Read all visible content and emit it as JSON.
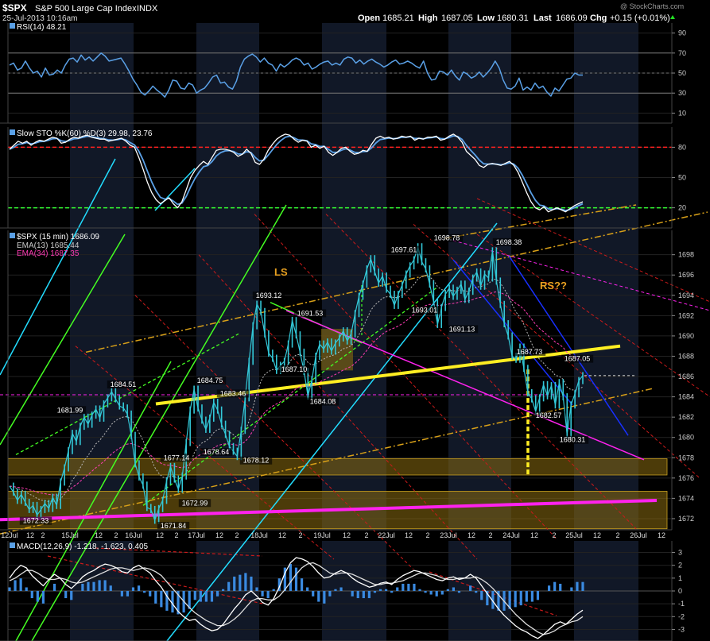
{
  "header": {
    "symbol": "$SPX",
    "name": "S&P 500 Large Cap Index",
    "exchange": "INDX",
    "datetime": "25-Jul-2013 10:16am",
    "open_label": "Open",
    "open": "1685.21",
    "high_label": "High",
    "high": "1687.05",
    "low_label": "Low",
    "low": "1680.31",
    "last_label": "Last",
    "last": "1686.09",
    "chg_label": "Chg",
    "chg": "+0.15 (+0.01%)",
    "watermark": "@ StockCharts.com"
  },
  "colors": {
    "background": "#000000",
    "price": "#33c8d8",
    "ema13": "#b8b8b8",
    "ema34": "#ff3cb4",
    "rsi_line": "#5aa0e6",
    "sto_k": "#ffffff",
    "sto_d": "#5aa0e6",
    "yellow": "#ffee22",
    "magenta": "#ff22ee",
    "orange": "#d8a018",
    "green": "#44ff22",
    "cyan": "#22ddff",
    "blue": "#1830ff",
    "red": "#cc1a1a",
    "annotation": "#e8a020",
    "zone": "#8a6c10"
  },
  "panels": {
    "rsi": {
      "label": "RSI(14) 48.21",
      "ticks": [
        "90",
        "70",
        "50",
        "30",
        "10"
      ],
      "tick_values": [
        90,
        70,
        50,
        30,
        10
      ],
      "ylim": [
        0,
        100
      ]
    },
    "sto": {
      "label": "Slow STO %K(60) %D(3) 29.98, 23.76",
      "ticks": [
        "80",
        "50",
        "20"
      ],
      "tick_values": [
        80,
        50,
        20
      ],
      "ylim": [
        0,
        100
      ]
    },
    "price": {
      "label": "$SPX (15 min) 1686.09",
      "legend": [
        "EMA(13) 1685.44",
        "EMA(34) 1687.35"
      ],
      "ticks": [
        "1698",
        "1696",
        "1694",
        "1692",
        "1690",
        "1688",
        "1686",
        "1684",
        "1682",
        "1680",
        "1678",
        "1676",
        "1674",
        "1672"
      ],
      "tick_values": [
        1698,
        1696,
        1694,
        1692,
        1690,
        1688,
        1686,
        1684,
        1682,
        1680,
        1678,
        1676,
        1674,
        1672
      ],
      "ylim": [
        1670.9,
        1700.4
      ]
    },
    "macd": {
      "label": "MACD(12,26,9) -1.218, -1.623, 0.405",
      "ticks": [
        "3",
        "2",
        "1",
        "0",
        "-1",
        "-2",
        "-3"
      ],
      "tick_values": [
        3,
        2,
        1,
        0,
        -1,
        -2,
        -3
      ],
      "ylim": [
        -3.9,
        3.9
      ]
    }
  },
  "x_axis_labels": [
    {
      "x": 12,
      "label": "12Jul"
    },
    {
      "x": 38,
      "label": "12"
    },
    {
      "x": 54,
      "label": "2"
    },
    {
      "x": 88,
      "label": "15Jul"
    },
    {
      "x": 124,
      "label": "12"
    },
    {
      "x": 146,
      "label": "2"
    },
    {
      "x": 168,
      "label": "16Jul"
    },
    {
      "x": 201,
      "label": "12"
    },
    {
      "x": 222,
      "label": "2"
    },
    {
      "x": 247,
      "label": "17Jul"
    },
    {
      "x": 276,
      "label": "12"
    },
    {
      "x": 298,
      "label": "2"
    },
    {
      "x": 326,
      "label": "18Jul"
    },
    {
      "x": 355,
      "label": "12"
    },
    {
      "x": 378,
      "label": "2"
    },
    {
      "x": 405,
      "label": "19Jul"
    },
    {
      "x": 436,
      "label": "12"
    },
    {
      "x": 461,
      "label": "2"
    },
    {
      "x": 486,
      "label": "22Jul"
    },
    {
      "x": 514,
      "label": "12"
    },
    {
      "x": 538,
      "label": "2"
    },
    {
      "x": 564,
      "label": "23Jul"
    },
    {
      "x": 593,
      "label": "12"
    },
    {
      "x": 617,
      "label": "2"
    },
    {
      "x": 643,
      "label": "24Jul"
    },
    {
      "x": 672,
      "label": "12"
    },
    {
      "x": 697,
      "label": "2"
    },
    {
      "x": 722,
      "label": "25Jul"
    },
    {
      "x": 751,
      "label": "12"
    },
    {
      "x": 777,
      "label": "2"
    },
    {
      "x": 803,
      "label": "26Jul"
    },
    {
      "x": 832,
      "label": "12"
    }
  ],
  "chart_data": {
    "type": "line",
    "title": "$SPX S&P 500 Large Cap Index INDX",
    "interval": "15 min",
    "sessions": [
      "12Jul",
      "15Jul",
      "16Jul",
      "17Jul",
      "18Jul",
      "19Jul",
      "22Jul",
      "23Jul",
      "24Jul",
      "25Jul",
      "26Jul"
    ],
    "price_series": [
      1675.2,
      1674.6,
      1673.8,
      1674.4,
      1673.6,
      1672.9,
      1673.3,
      1672.33,
      1672.9,
      1673.5,
      1673.0,
      1674.1,
      1673.3,
      1675.6,
      1677.0,
      1678.7,
      1680.4,
      1679.6,
      1681.1,
      1681.99,
      1681.3,
      1682.2,
      1682.8,
      1681.9,
      1683.3,
      1683.9,
      1684.51,
      1683.8,
      1683.1,
      1682.9,
      1682.3,
      1680.2,
      1677.4,
      1676.1,
      1675.3,
      1673.1,
      1672.9,
      1671.84,
      1672.99,
      1673.8,
      1675.7,
      1677.14,
      1675.9,
      1674.9,
      1676.2,
      1679.5,
      1682.7,
      1684.75,
      1682.9,
      1681.7,
      1680.8,
      1681.9,
      1683.46,
      1682.7,
      1681.3,
      1680.3,
      1679.1,
      1678.64,
      1678.12,
      1680.7,
      1683.9,
      1687.5,
      1691.0,
      1693.12,
      1692.4,
      1690.2,
      1688.3,
      1687.8,
      1686.6,
      1687.1,
      1687.5,
      1689.2,
      1691.53,
      1690.1,
      1688.4,
      1686.5,
      1684.08,
      1685.7,
      1688.0,
      1689.2,
      1688.7,
      1689.4,
      1688.5,
      1689.3,
      1689.8,
      1690.5,
      1689.5,
      1690.2,
      1692.2,
      1693.9,
      1695.1,
      1696.6,
      1697.61,
      1696.3,
      1695.2,
      1695.9,
      1694.6,
      1694.1,
      1693.01,
      1694.1,
      1695.0,
      1696.1,
      1696.9,
      1697.5,
      1698.78,
      1697.3,
      1696.6,
      1695.1,
      1693.4,
      1691.13,
      1692.8,
      1694.1,
      1694.7,
      1693.9,
      1694.5,
      1695.1,
      1693.6,
      1694.4,
      1695.7,
      1696.3,
      1694.9,
      1696.1,
      1695.7,
      1698.38,
      1695.4,
      1693.1,
      1691.2,
      1690.0,
      1688.0,
      1687.7,
      1688.9,
      1686.8,
      1684.4,
      1683.8,
      1682.57,
      1683.9,
      1685.2,
      1684.1,
      1685.1,
      1683.2,
      1685.4,
      1684.0,
      1680.31,
      1683.2,
      1684.3,
      1685.6,
      1686.09
    ],
    "price_labels": [
      {
        "label": "1672.33",
        "value": 1672.33
      },
      {
        "label": "1681.99",
        "value": 1681.99
      },
      {
        "label": "1684.51",
        "value": 1684.51
      },
      {
        "label": "1671.84",
        "value": 1671.84
      },
      {
        "label": "1672.99",
        "value": 1672.99
      },
      {
        "label": "1677.14",
        "value": 1677.14
      },
      {
        "label": "1678.64",
        "value": 1678.64
      },
      {
        "label": "1684.75",
        "value": 1684.75
      },
      {
        "label": "1683.46",
        "value": 1683.46
      },
      {
        "label": "1678.12",
        "value": 1678.12
      },
      {
        "label": "1693.12",
        "value": 1693.12
      },
      {
        "label": "1687.10",
        "value": 1687.1
      },
      {
        "label": "1691.53",
        "value": 1691.53
      },
      {
        "label": "1684.08",
        "value": 1684.08
      },
      {
        "label": "1697.61",
        "value": 1697.61
      },
      {
        "label": "1693.01",
        "value": 1693.01
      },
      {
        "label": "1698.78",
        "value": 1698.78
      },
      {
        "label": "1691.13",
        "value": 1691.13
      },
      {
        "label": "1698.38",
        "value": 1698.38
      },
      {
        "label": "1687.73",
        "value": 1687.73
      },
      {
        "label": "1687.05",
        "value": 1687.05
      },
      {
        "label": "1682.57",
        "value": 1682.57
      },
      {
        "label": "1680.31",
        "value": 1680.31
      }
    ],
    "annotations": [
      "LS",
      "RS??"
    ],
    "horizontal_zones": [
      [
        1676.3,
        1677.9
      ],
      [
        1671.0,
        1674.7
      ]
    ],
    "rsi_series": [
      58,
      60,
      53,
      55,
      62,
      55,
      50,
      52,
      46,
      55,
      48,
      49,
      53,
      50,
      58,
      64,
      65,
      61,
      68,
      63,
      66,
      62,
      66,
      70,
      67,
      62,
      63,
      64,
      65,
      59,
      52,
      44,
      38,
      31,
      28,
      32,
      37,
      33,
      30,
      26,
      33,
      43,
      42,
      35,
      34,
      40,
      38,
      30,
      33,
      35,
      40,
      46,
      48,
      40,
      41,
      36,
      34,
      42,
      56,
      64,
      67,
      69,
      66,
      61,
      65,
      60,
      58,
      52,
      59,
      56,
      59,
      63,
      65,
      63,
      58,
      60,
      54,
      56,
      59,
      61,
      62,
      58,
      60,
      58,
      64,
      66,
      65,
      60,
      63,
      59,
      62,
      64,
      61,
      59,
      56,
      58,
      61,
      63,
      59,
      60,
      62,
      60,
      57,
      55,
      62,
      50,
      43,
      44,
      52,
      51,
      48,
      53,
      47,
      43,
      51,
      49,
      45,
      47,
      51,
      46,
      50,
      55,
      62,
      55,
      43,
      35,
      34,
      37,
      45,
      33,
      36,
      33,
      40,
      35,
      37,
      31,
      27,
      35,
      32,
      38,
      44,
      45,
      50,
      48,
      48
    ],
    "sto_k_series": [
      78,
      82,
      86,
      84,
      86,
      82,
      85,
      87,
      86,
      88,
      90,
      89,
      84,
      85,
      88,
      90,
      89,
      91,
      92,
      90,
      89,
      88,
      88,
      86,
      87,
      88,
      89,
      86,
      82,
      80,
      70,
      58,
      45,
      35,
      28,
      24,
      27,
      30,
      24,
      20,
      26,
      38,
      50,
      57,
      62,
      66,
      63,
      70,
      77,
      78,
      78,
      77,
      75,
      71,
      73,
      78,
      74,
      65,
      63,
      68,
      77,
      83,
      88,
      91,
      93,
      92,
      88,
      85,
      87,
      86,
      80,
      82,
      79,
      81,
      75,
      72,
      75,
      79,
      80,
      76,
      73,
      74,
      77,
      76,
      83,
      89,
      91,
      89,
      90,
      88,
      89,
      91,
      90,
      91,
      87,
      89,
      88,
      90,
      90,
      91,
      87,
      88,
      91,
      93,
      90,
      85,
      76,
      72,
      68,
      62,
      60,
      63,
      64,
      63,
      62,
      64,
      66,
      62,
      55,
      45,
      35,
      26,
      20,
      18,
      21,
      16,
      18,
      20,
      18,
      16,
      19,
      22,
      24,
      26
    ],
    "macd_series": [
      1.0,
      1.6,
      2.0,
      1.8,
      1.2,
      0.8,
      0.4,
      0.9,
      1.3,
      1.0,
      0.5,
      0.2,
      0.6,
      1.1,
      1.4,
      1.6,
      1.9,
      2.1,
      2.0,
      1.8,
      1.5,
      1.4,
      1.8,
      2.0,
      1.7,
      1.4,
      0.8,
      0.3,
      -0.4,
      -1.0,
      -1.6,
      -2.0,
      -2.3,
      -2.2,
      -2.6,
      -2.9,
      -3.1,
      -3.0,
      -2.6,
      -2.0,
      -1.4,
      -0.9,
      -0.3,
      0.0,
      -0.4,
      -0.9,
      -1.1,
      -0.6,
      0.3,
      1.4,
      2.2,
      2.6,
      2.5,
      2.3,
      1.9,
      1.4,
      1.0,
      1.1,
      1.4,
      1.6,
      1.4,
      1.0,
      0.7,
      0.5,
      0.3,
      0.4,
      0.6,
      0.7,
      0.5,
      0.9,
      1.2,
      1.4,
      1.6,
      1.5,
      1.3,
      1.1,
      0.9,
      0.8,
      1.0,
      1.1,
      0.9,
      1.0,
      1.3,
      1.0,
      0.4,
      -0.2,
      -0.8,
      -1.4,
      -1.9,
      -2.3,
      -2.7,
      -3.0,
      -3.2,
      -3.5,
      -3.7,
      -3.4,
      -3.0,
      -2.6,
      -2.4,
      -2.6,
      -2.2,
      -1.8,
      -1.5
    ],
    "macd_signal_series": [
      0.8,
      1.0,
      1.3,
      1.6,
      1.6,
      1.4,
      1.1,
      0.9,
      0.9,
      1.0,
      0.9,
      0.7,
      0.6,
      0.7,
      0.9,
      1.1,
      1.3,
      1.5,
      1.7,
      1.8,
      1.8,
      1.7,
      1.6,
      1.7,
      1.8,
      1.7,
      1.5,
      1.2,
      0.7,
      0.2,
      -0.3,
      -0.8,
      -1.3,
      -1.7,
      -2.0,
      -2.3,
      -2.5,
      -2.7,
      -2.7,
      -2.5,
      -2.2,
      -1.8,
      -1.3,
      -0.8,
      -0.6,
      -0.6,
      -0.7,
      -0.7,
      -0.4,
      0.1,
      0.7,
      1.3,
      1.8,
      2.1,
      2.2,
      2.0,
      1.7,
      1.4,
      1.3,
      1.4,
      1.4,
      1.3,
      1.1,
      0.9,
      0.7,
      0.5,
      0.5,
      0.6,
      0.6,
      0.7,
      0.8,
      1.0,
      1.2,
      1.4,
      1.4,
      1.3,
      1.2,
      1.0,
      0.9,
      0.9,
      1.0,
      1.0,
      1.0,
      1.1,
      0.9,
      0.6,
      0.2,
      -0.3,
      -0.8,
      -1.3,
      -1.8,
      -2.2,
      -2.6,
      -2.9,
      -3.2,
      -3.4,
      -3.3,
      -3.1,
      -2.8,
      -2.6,
      -2.4,
      -2.3,
      -2.0
    ]
  }
}
